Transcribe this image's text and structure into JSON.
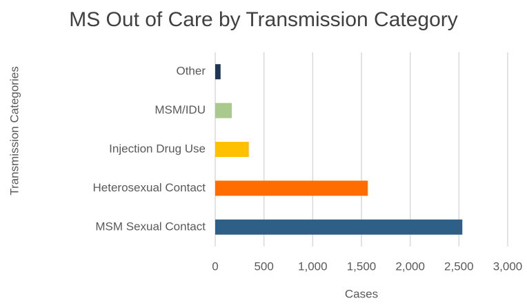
{
  "chart_data": {
    "type": "barh",
    "title": "MS Out of Care by Transmission Category",
    "categories": [
      "Other",
      "MSM/IDU",
      "Injection Drug Use",
      "Heterosexual Contact",
      "MSM Sexual Contact"
    ],
    "values": [
      55,
      170,
      345,
      1565,
      2535
    ],
    "colors": [
      "#1f3556",
      "#a9c98f",
      "#ffc000",
      "#ff6d00",
      "#2e5f86"
    ],
    "xlabel": "Cases",
    "ylabel": "Transmission Categories",
    "xlim": [
      0,
      3000
    ],
    "xticks": [
      0,
      500,
      {
        "value": 1000,
        "label": "1,000"
      },
      {
        "value": 1500,
        "label": "1,500"
      },
      {
        "value": 2000,
        "label": "2,000"
      },
      {
        "value": 2500,
        "label": "2,500"
      },
      {
        "value": 3000,
        "label": "3,000"
      }
    ],
    "grid": true
  }
}
